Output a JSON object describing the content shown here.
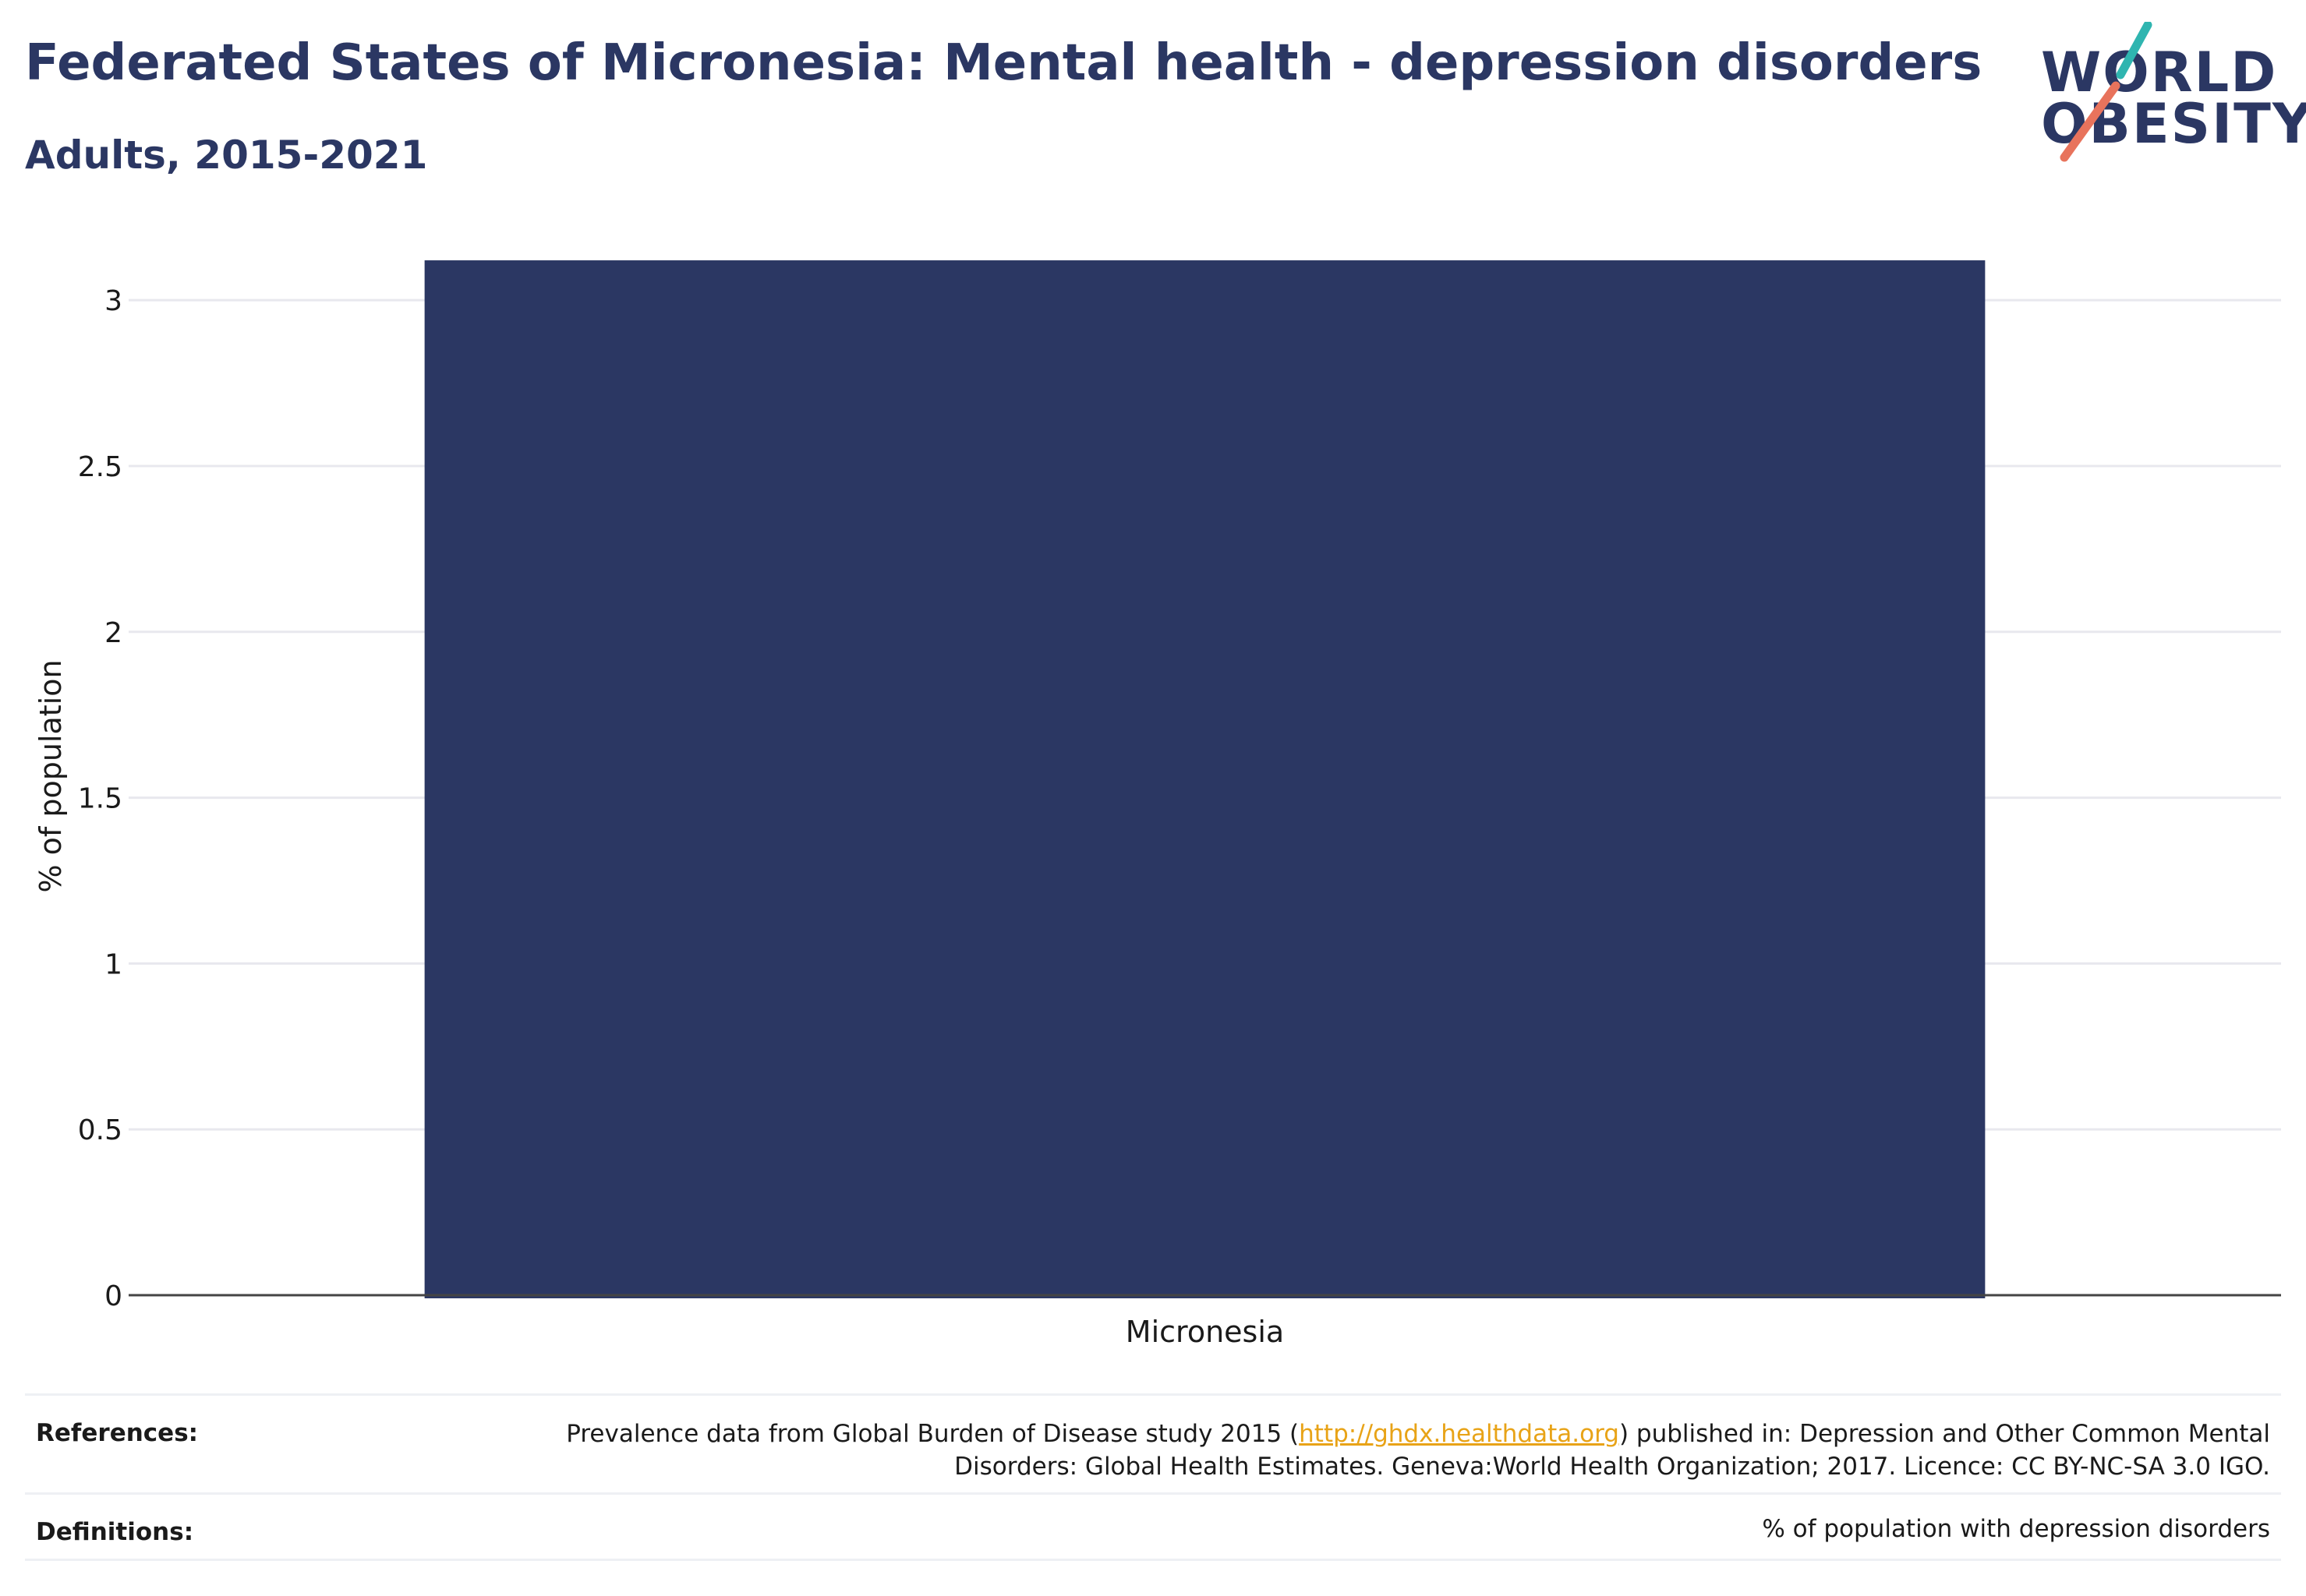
{
  "header": {
    "title": "Federated States of Micronesia: Mental health - depression disorders",
    "subtitle": "Adults, 2015-2021"
  },
  "logo": {
    "line1": "WORLD",
    "line2": "OBESITY",
    "accent_teal": "#2fb5b0",
    "accent_coral": "#e8735c"
  },
  "colors": {
    "bar": "#2b3763",
    "text": "#2b3763",
    "grid": "#e8e8ee",
    "axis": "#444444",
    "link": "#e8a317"
  },
  "chart_data": {
    "type": "bar",
    "categories": [
      "Micronesia"
    ],
    "values": [
      3.12
    ],
    "ylabel": "% of population",
    "xlabel": "",
    "ylim": [
      0,
      3.2
    ],
    "yticks": [
      "0",
      "0.5",
      "1",
      "1.5",
      "2",
      "2.5",
      "3"
    ],
    "grid": true
  },
  "references": {
    "label": "References:",
    "text_before": "Prevalence data from Global Burden of Disease study 2015 (",
    "link": "http://ghdx.healthdata.org",
    "text_after": ") published in: Depression and Other Common Mental Disorders: Global Health Estimates. Geneva:World Health Organization; 2017. Licence: CC BY-NC-SA 3.0 IGO."
  },
  "definitions": {
    "label": "Definitions:",
    "text": "% of population with depression disorders"
  }
}
